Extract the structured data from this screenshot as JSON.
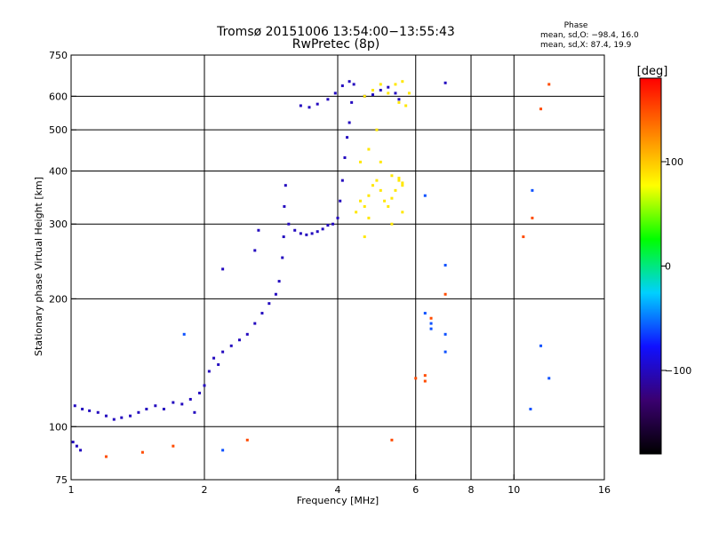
{
  "header": {
    "title_line1": "Tromsø 20151006 13:54:00−13:55:43",
    "title_line2": "RwPretec (8p)"
  },
  "phase_stats": {
    "heading": "Phase",
    "line_o": "mean, sd,O: −98.4, 16.0",
    "line_x": "mean, sd,X:  87.4, 19.9"
  },
  "chart_data": {
    "type": "scatter",
    "xlabel": "Frequency [MHz]",
    "ylabel": "Stationary phase Virtual Height [km]",
    "xscale": "log",
    "yscale": "log",
    "xlim": [
      1,
      16
    ],
    "ylim": [
      75,
      750
    ],
    "x_ticks": [
      1,
      2,
      4,
      6,
      8,
      10,
      16
    ],
    "x_tick_labels": [
      "1",
      "2",
      "4",
      "6",
      "8",
      "10",
      "16"
    ],
    "y_ticks": [
      75,
      100,
      200,
      300,
      400,
      500,
      600,
      750
    ],
    "y_tick_labels": [
      "75",
      "100",
      "200",
      "300",
      "400",
      "500",
      "600",
      "750"
    ],
    "x_gridlines": [
      2,
      4,
      6,
      8,
      10
    ],
    "y_gridlines": [
      100,
      200,
      300,
      400,
      500,
      600
    ],
    "grid": true,
    "colorbar": {
      "label": "[deg]",
      "range": [
        -180,
        180
      ],
      "ticks": [
        100,
        0,
        -100
      ],
      "tick_labels": [
        "100",
        "0",
        "−100"
      ],
      "colors": [
        "#000000",
        "#3a0070",
        "#1010ff",
        "#00d0ff",
        "#00ff00",
        "#ffff00",
        "#ff8000",
        "#ff0000"
      ]
    },
    "series": [
      {
        "mode": "O",
        "phase_deg": -100,
        "points": [
          [
            1.02,
            112
          ],
          [
            1.06,
            110
          ],
          [
            1.1,
            109
          ],
          [
            1.15,
            108
          ],
          [
            1.2,
            106
          ],
          [
            1.25,
            104
          ],
          [
            1.3,
            105
          ],
          [
            1.36,
            106
          ],
          [
            1.42,
            108
          ],
          [
            1.48,
            110
          ],
          [
            1.55,
            112
          ],
          [
            1.62,
            110
          ],
          [
            1.7,
            114
          ],
          [
            1.78,
            113
          ],
          [
            1.86,
            116
          ],
          [
            1.95,
            120
          ],
          [
            2.0,
            125
          ],
          [
            2.05,
            135
          ],
          [
            2.1,
            145
          ],
          [
            2.15,
            140
          ],
          [
            2.2,
            150
          ],
          [
            2.3,
            155
          ],
          [
            2.4,
            160
          ],
          [
            2.5,
            165
          ],
          [
            2.6,
            175
          ],
          [
            2.7,
            185
          ],
          [
            2.8,
            195
          ],
          [
            2.9,
            205
          ],
          [
            2.95,
            220
          ],
          [
            3.0,
            250
          ],
          [
            3.02,
            280
          ],
          [
            3.03,
            330
          ],
          [
            3.05,
            370
          ],
          [
            3.1,
            300
          ],
          [
            3.2,
            290
          ],
          [
            3.3,
            285
          ],
          [
            3.4,
            283
          ],
          [
            3.5,
            285
          ],
          [
            3.6,
            288
          ],
          [
            3.7,
            292
          ],
          [
            3.8,
            298
          ],
          [
            3.9,
            300
          ],
          [
            4.0,
            310
          ],
          [
            4.05,
            340
          ],
          [
            4.1,
            380
          ],
          [
            4.15,
            430
          ],
          [
            4.2,
            480
          ],
          [
            4.25,
            520
          ],
          [
            4.3,
            580
          ],
          [
            4.35,
            640
          ],
          [
            3.3,
            570
          ],
          [
            3.45,
            565
          ],
          [
            3.6,
            575
          ],
          [
            3.8,
            590
          ],
          [
            3.95,
            610
          ],
          [
            4.1,
            635
          ],
          [
            4.25,
            650
          ],
          [
            4.6,
            600
          ],
          [
            4.8,
            605
          ],
          [
            5.0,
            620
          ],
          [
            5.2,
            630
          ],
          [
            5.4,
            610
          ],
          [
            5.5,
            590
          ],
          [
            1.01,
            92
          ],
          [
            1.03,
            90
          ],
          [
            1.05,
            88
          ],
          [
            1.9,
            108
          ],
          [
            2.6,
            260
          ],
          [
            2.65,
            290
          ],
          [
            2.2,
            235
          ],
          [
            7.0,
            645
          ]
        ]
      },
      {
        "mode": "X",
        "phase_deg": 87,
        "points": [
          [
            4.4,
            320
          ],
          [
            4.5,
            340
          ],
          [
            4.6,
            330
          ],
          [
            4.7,
            350
          ],
          [
            4.8,
            370
          ],
          [
            4.9,
            380
          ],
          [
            5.0,
            360
          ],
          [
            5.1,
            340
          ],
          [
            5.2,
            330
          ],
          [
            5.3,
            345
          ],
          [
            5.4,
            360
          ],
          [
            5.5,
            380
          ],
          [
            5.6,
            370
          ],
          [
            4.5,
            420
          ],
          [
            4.7,
            450
          ],
          [
            4.9,
            500
          ],
          [
            5.0,
            420
          ],
          [
            5.3,
            390
          ],
          [
            5.5,
            385
          ],
          [
            5.6,
            375
          ],
          [
            4.6,
            600
          ],
          [
            4.8,
            620
          ],
          [
            5.0,
            640
          ],
          [
            5.2,
            610
          ],
          [
            5.4,
            640
          ],
          [
            5.6,
            650
          ],
          [
            5.8,
            610
          ],
          [
            5.5,
            580
          ],
          [
            5.7,
            570
          ],
          [
            4.6,
            280
          ],
          [
            4.7,
            310
          ],
          [
            5.3,
            300
          ],
          [
            5.6,
            320
          ]
        ]
      },
      {
        "mode": "other",
        "phase_deg": 150,
        "points": [
          [
            1.2,
            85
          ],
          [
            1.45,
            87
          ],
          [
            1.7,
            90
          ],
          [
            2.5,
            93
          ],
          [
            5.3,
            93
          ],
          [
            6.0,
            130
          ],
          [
            6.3,
            132
          ],
          [
            6.3,
            128
          ],
          [
            7.0,
            205
          ],
          [
            6.5,
            180
          ],
          [
            11.0,
            310
          ],
          [
            11.5,
            560
          ],
          [
            12.0,
            640
          ],
          [
            10.5,
            280
          ]
        ]
      },
      {
        "mode": "sparse",
        "phase_deg": -60,
        "points": [
          [
            2.2,
            88
          ],
          [
            1.8,
            165
          ],
          [
            6.3,
            350
          ],
          [
            6.5,
            175
          ],
          [
            6.5,
            170
          ],
          [
            7.0,
            165
          ],
          [
            7.0,
            150
          ],
          [
            7.0,
            240
          ],
          [
            10.9,
            110
          ],
          [
            11.5,
            155
          ],
          [
            11.0,
            360
          ],
          [
            12.0,
            130
          ],
          [
            6.3,
            185
          ]
        ]
      }
    ]
  }
}
